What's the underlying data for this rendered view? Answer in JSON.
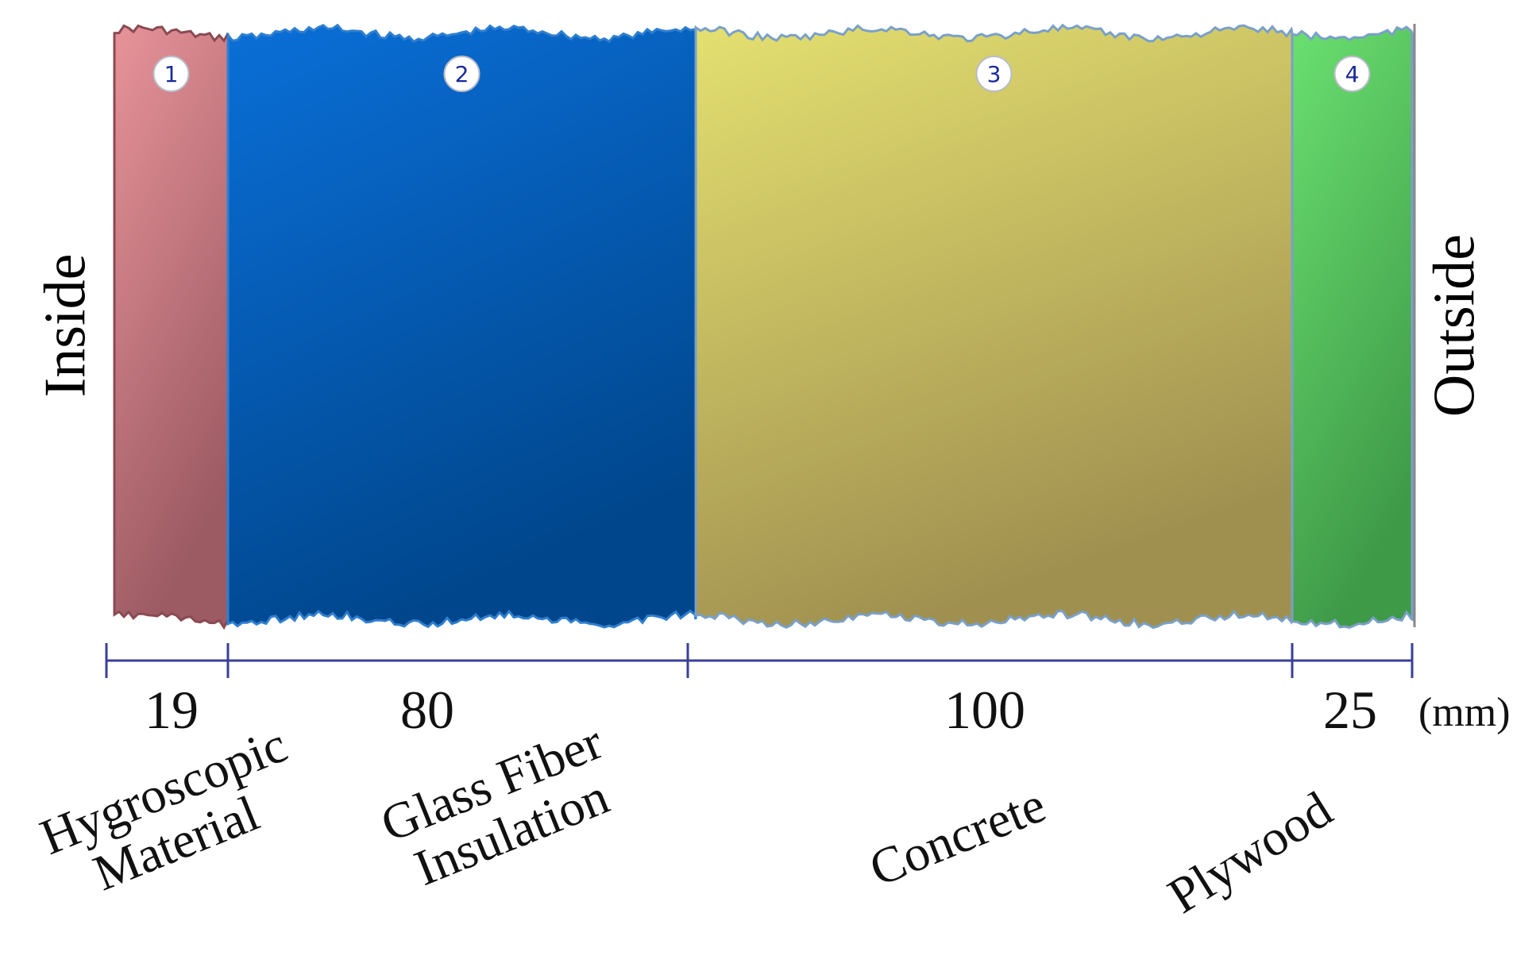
{
  "labels": {
    "inside": "Inside",
    "outside": "Outside",
    "unit": "(mm)"
  },
  "layers": [
    {
      "number": "1",
      "thickness": "19",
      "thickness_mm": 19,
      "material": [
        "Hygroscopic",
        "Material"
      ],
      "color_top": "#e8939a",
      "color_bottom": "#9c5a62",
      "edge": "#8a4a52"
    },
    {
      "number": "2",
      "thickness": "80",
      "thickness_mm": 80,
      "material": [
        "Glass Fiber",
        "Insulation"
      ],
      "color_top": "#0a6fd8",
      "color_bottom": "#00468c",
      "edge": "#2f7fd0"
    },
    {
      "number": "3",
      "thickness": "100",
      "thickness_mm": 100,
      "material": [
        "Concrete"
      ],
      "color_top": "#e4e070",
      "color_bottom": "#a09050",
      "edge": "#7aa0c8"
    },
    {
      "number": "4",
      "thickness": "25",
      "thickness_mm": 25,
      "material": [
        "Plywood"
      ],
      "color_top": "#6ae070",
      "color_bottom": "#3f9a48",
      "edge": "#7aa0c8"
    }
  ],
  "colors": {
    "dimension_line": "#3a3f96",
    "badge_text": "#1a2a9a",
    "boundary_line": "#888888"
  }
}
